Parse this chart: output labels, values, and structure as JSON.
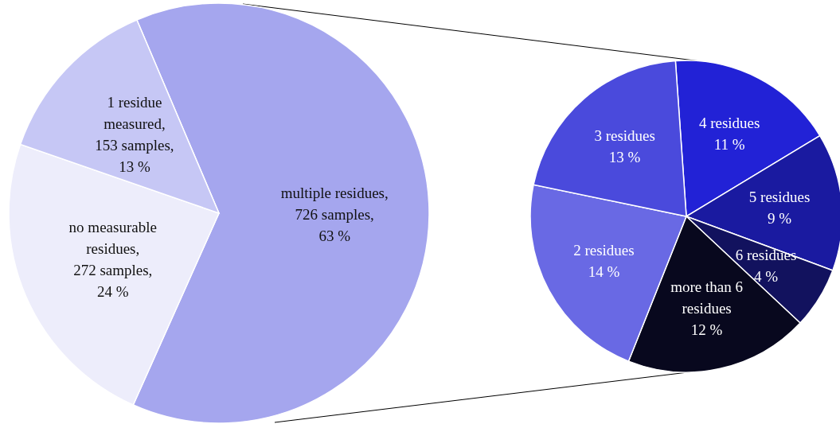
{
  "chart_data": [
    {
      "type": "pie",
      "categories": [
        "multiple residues",
        "no measurable residues",
        "1 residue measured"
      ],
      "values": [
        726,
        272,
        153
      ],
      "value_labels": [
        ", 726 samples, 63 %",
        ", 272 samples, 24 %",
        ", 153 samples, 13 %"
      ],
      "colors": [
        "#a5a6ee",
        "#ededfb",
        "#c6c7f5"
      ]
    },
    {
      "type": "pie",
      "categories": [
        "4 residues",
        "5 residues",
        "6 residues",
        "more than 6 residues",
        "2 residues",
        "3 residues"
      ],
      "values": [
        11,
        9,
        4,
        12,
        14,
        13
      ],
      "value_labels": [
        "11 %",
        "9 %",
        "4 %",
        "12 %",
        "14 %",
        "13 %"
      ],
      "colors": [
        "#2222d6",
        "#1a1aa0",
        "#12125e",
        "#08081e",
        "#6969e4",
        "#4a4adc"
      ]
    }
  ]
}
